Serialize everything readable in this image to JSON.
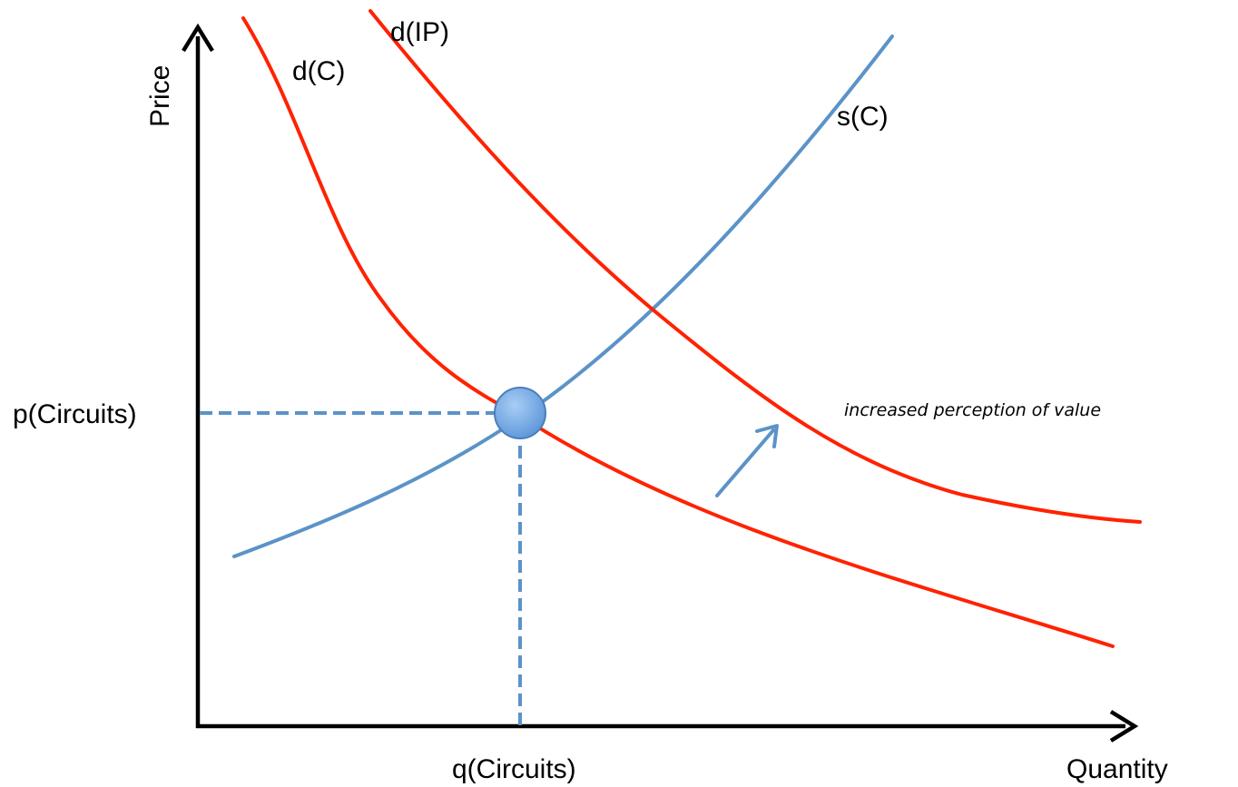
{
  "axes": {
    "y_label": "Price",
    "x_label": "Quantity"
  },
  "curves": {
    "demand_circuits": "d(C)",
    "demand_ip": "d(IP)",
    "supply_circuits": "s(C)"
  },
  "equilibrium": {
    "price_label": "p(Circuits)",
    "quantity_label": "q(Circuits)"
  },
  "annotation": {
    "text": "increased perception of value"
  },
  "colors": {
    "demand": "#ff2200",
    "supply": "#5b93c8",
    "axis": "#000000",
    "point_fill": "#7fb0e8"
  }
}
